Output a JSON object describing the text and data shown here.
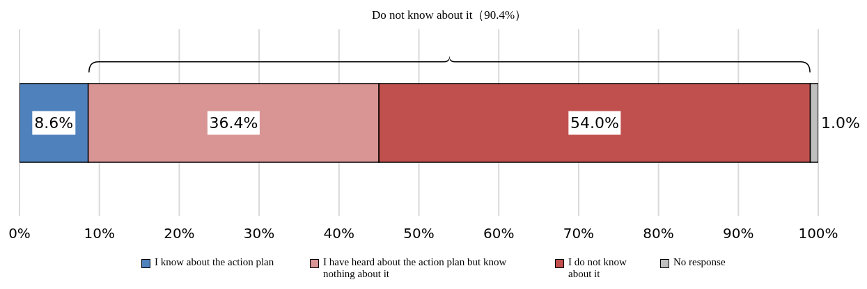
{
  "chart_data": {
    "type": "bar",
    "orientation": "horizontal",
    "stacked": true,
    "categories": [
      null
    ],
    "series": [
      {
        "name": "I know about the action plan",
        "color": "#4f81bd",
        "values": [
          8.6
        ],
        "value_labels": [
          "8.6%"
        ]
      },
      {
        "name": "I have heard about the action plan but know nothing about it",
        "color": "#d99594",
        "values": [
          36.4
        ],
        "value_labels": [
          "36.4%"
        ]
      },
      {
        "name": "I do not know about it",
        "color": "#c0504d",
        "values": [
          54.0
        ],
        "value_labels": [
          "54.0%"
        ]
      },
      {
        "name": "No response",
        "color": "#bfbfbf",
        "values": [
          1.0
        ],
        "value_labels": [
          "1.0%"
        ]
      }
    ],
    "xlim": [
      0,
      100
    ],
    "xticks": [
      {
        "value": 0,
        "label": "0%"
      },
      {
        "value": 10,
        "label": "10%"
      },
      {
        "value": 20,
        "label": "20%"
      },
      {
        "value": 30,
        "label": "30%"
      },
      {
        "value": 40,
        "label": "40%"
      },
      {
        "value": 50,
        "label": "50%"
      },
      {
        "value": 60,
        "label": "60%"
      },
      {
        "value": 70,
        "label": "70%"
      },
      {
        "value": 80,
        "label": "80%"
      },
      {
        "value": 90,
        "label": "90%"
      },
      {
        "value": 100,
        "label": "100%"
      }
    ],
    "grid": "x",
    "legend": "bottom",
    "annotations": [
      "Do not know about it（90.4%）"
    ]
  }
}
